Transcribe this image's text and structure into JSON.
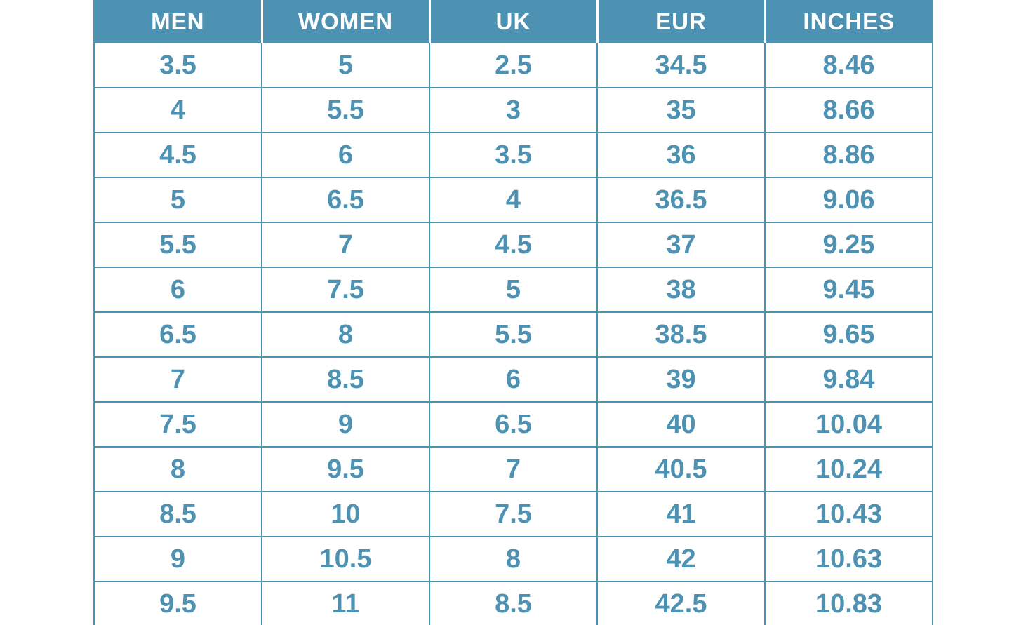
{
  "chart_data": {
    "type": "table",
    "columns": [
      "MEN",
      "WOMEN",
      "UK",
      "EUR",
      "INCHES"
    ],
    "rows": [
      [
        "3.5",
        "5",
        "2.5",
        "34.5",
        "8.46"
      ],
      [
        "4",
        "5.5",
        "3",
        "35",
        "8.66"
      ],
      [
        "4.5",
        "6",
        "3.5",
        "36",
        "8.86"
      ],
      [
        "5",
        "6.5",
        "4",
        "36.5",
        "9.06"
      ],
      [
        "5.5",
        "7",
        "4.5",
        "37",
        "9.25"
      ],
      [
        "6",
        "7.5",
        "5",
        "38",
        "9.45"
      ],
      [
        "6.5",
        "8",
        "5.5",
        "38.5",
        "9.65"
      ],
      [
        "7",
        "8.5",
        "6",
        "39",
        "9.84"
      ],
      [
        "7.5",
        "9",
        "6.5",
        "40",
        "10.04"
      ],
      [
        "8",
        "9.5",
        "7",
        "40.5",
        "10.24"
      ],
      [
        "8.5",
        "10",
        "7.5",
        "41",
        "10.43"
      ],
      [
        "9",
        "10.5",
        "8",
        "42",
        "10.63"
      ],
      [
        "9.5",
        "11",
        "8.5",
        "42.5",
        "10.83"
      ]
    ],
    "grid": "on",
    "legend_position": "none"
  },
  "colors": {
    "header_background": "#4D92B2",
    "header_text": "#FFFFFF",
    "cell_text": "#4D92B2",
    "grid_border": "#4D92B2",
    "header_separator": "#FFFFFF",
    "page_background": "#FFFFFF"
  }
}
